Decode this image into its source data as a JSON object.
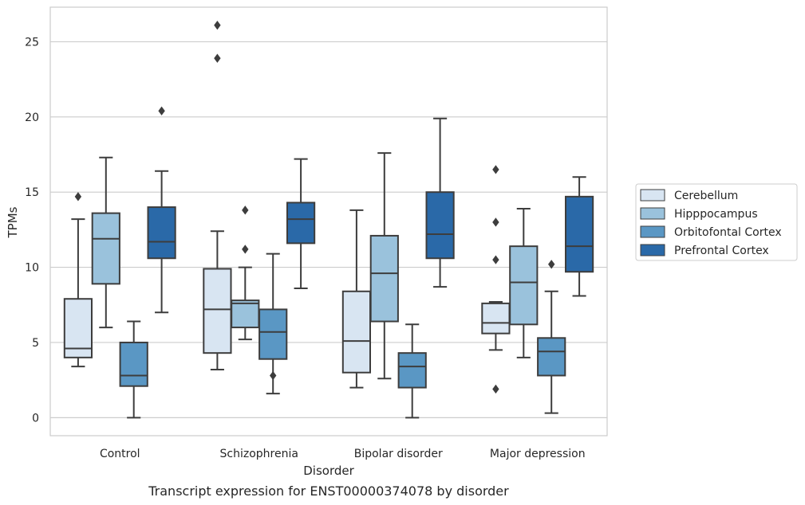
{
  "chart_data": {
    "type": "box",
    "title": "",
    "caption": "Transcript expression for ENST00000374078 by disorder",
    "xlabel": "Disorder",
    "ylabel": "TPMs",
    "ylim": [
      -1.2,
      27.3
    ],
    "yticks": [
      0,
      5,
      10,
      15,
      20,
      25
    ],
    "grid": "horizontal",
    "legend_position": "right",
    "categories": [
      "Control",
      "Schizophrenia",
      "Bipolar disorder",
      "Major depression"
    ],
    "series": [
      {
        "name": "Cerebellum",
        "color": "#d8e5f2",
        "boxes": [
          {
            "whisker_low": 3.4,
            "q1": 4.0,
            "median": 4.6,
            "q3": 7.9,
            "whisker_high": 13.2,
            "outliers": [
              14.7
            ]
          },
          {
            "whisker_low": 3.2,
            "q1": 4.3,
            "median": 7.2,
            "q3": 9.9,
            "whisker_high": 12.4,
            "outliers": [
              23.9,
              26.1
            ]
          },
          {
            "whisker_low": 2.0,
            "q1": 3.0,
            "median": 5.1,
            "q3": 8.4,
            "whisker_high": 13.8,
            "outliers": []
          },
          {
            "whisker_low": 4.5,
            "q1": 5.6,
            "median": 6.3,
            "q3": 7.6,
            "whisker_high": 7.7,
            "outliers": [
              1.9,
              10.5,
              13.0,
              16.5
            ]
          }
        ]
      },
      {
        "name": "Hipppocampus",
        "color": "#9ac2dc",
        "boxes": [
          {
            "whisker_low": 6.0,
            "q1": 8.9,
            "median": 11.9,
            "q3": 13.6,
            "whisker_high": 17.3,
            "outliers": []
          },
          {
            "whisker_low": 5.2,
            "q1": 6.0,
            "median": 7.6,
            "q3": 7.8,
            "whisker_high": 10.0,
            "outliers": [
              11.2,
              13.8
            ]
          },
          {
            "whisker_low": 2.6,
            "q1": 6.4,
            "median": 9.6,
            "q3": 12.1,
            "whisker_high": 17.6,
            "outliers": []
          },
          {
            "whisker_low": 4.0,
            "q1": 6.2,
            "median": 9.0,
            "q3": 11.4,
            "whisker_high": 13.9,
            "outliers": []
          }
        ]
      },
      {
        "name": "Orbitofontal Cortex",
        "color": "#5a97c4",
        "boxes": [
          {
            "whisker_low": 0.0,
            "q1": 2.1,
            "median": 2.8,
            "q3": 5.0,
            "whisker_high": 6.4,
            "outliers": []
          },
          {
            "whisker_low": 1.6,
            "q1": 3.9,
            "median": 5.7,
            "q3": 7.2,
            "whisker_high": 10.9,
            "outliers": [
              2.8
            ]
          },
          {
            "whisker_low": 0.0,
            "q1": 2.0,
            "median": 3.4,
            "q3": 4.3,
            "whisker_high": 6.2,
            "outliers": []
          },
          {
            "whisker_low": 0.3,
            "q1": 2.8,
            "median": 4.4,
            "q3": 5.3,
            "whisker_high": 8.4,
            "outliers": [
              10.2
            ]
          }
        ]
      },
      {
        "name": "Prefrontal Cortex",
        "color": "#2a69a8",
        "boxes": [
          {
            "whisker_low": 7.0,
            "q1": 10.6,
            "median": 11.7,
            "q3": 14.0,
            "whisker_high": 16.4,
            "outliers": [
              20.4
            ]
          },
          {
            "whisker_low": 8.6,
            "q1": 11.6,
            "median": 13.2,
            "q3": 14.3,
            "whisker_high": 17.2,
            "outliers": []
          },
          {
            "whisker_low": 8.7,
            "q1": 10.6,
            "median": 12.2,
            "q3": 15.0,
            "whisker_high": 19.9,
            "outliers": []
          },
          {
            "whisker_low": 8.1,
            "q1": 9.7,
            "median": 11.4,
            "q3": 14.7,
            "whisker_high": 16.0,
            "outliers": []
          }
        ]
      }
    ]
  }
}
